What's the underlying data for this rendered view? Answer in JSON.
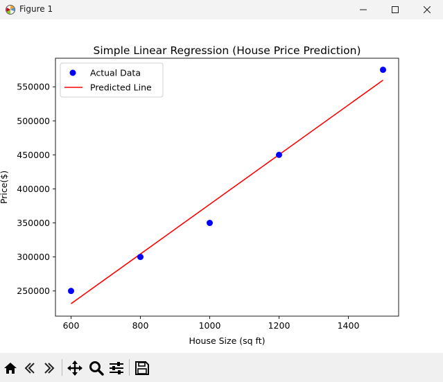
{
  "window": {
    "title": "Figure 1"
  },
  "chart_data": {
    "type": "scatter",
    "title": "Simple Linear Regression (House Price Prediction)",
    "xlabel": "House Size (sq ft)",
    "ylabel": "Price($)",
    "xlim": [
      555,
      1545
    ],
    "ylim": [
      213000,
      592000
    ],
    "xticks": [
      600,
      800,
      1000,
      1200,
      1400
    ],
    "yticks": [
      250000,
      300000,
      350000,
      400000,
      450000,
      500000,
      550000
    ],
    "grid": false,
    "legend_position": "top-left",
    "series": [
      {
        "name": "Actual Data",
        "kind": "scatter",
        "color": "#0000ff",
        "x": [
          600,
          800,
          1000,
          1200,
          1500
        ],
        "y": [
          250000,
          300000,
          350000,
          450000,
          575000
        ]
      },
      {
        "name": "Predicted Line",
        "kind": "line",
        "color": "#ff0000",
        "x": [
          600,
          800,
          1000,
          1200,
          1500
        ],
        "y": [
          231250,
          304250,
          377250,
          450250,
          559750
        ]
      }
    ]
  },
  "toolbar": {
    "icons": [
      "home-icon",
      "back-icon",
      "forward-icon",
      "pan-icon",
      "zoom-icon",
      "configure-icon",
      "save-icon"
    ]
  }
}
